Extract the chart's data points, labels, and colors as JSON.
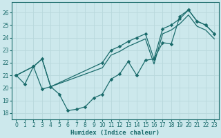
{
  "xlabel": "Humidex (Indice chaleur)",
  "xlim": [
    -0.5,
    23.5
  ],
  "ylim": [
    17.5,
    26.8
  ],
  "xticks": [
    0,
    1,
    2,
    3,
    4,
    5,
    6,
    7,
    8,
    9,
    10,
    11,
    12,
    13,
    14,
    15,
    16,
    17,
    18,
    19,
    20,
    21,
    22,
    23
  ],
  "yticks": [
    18,
    19,
    20,
    21,
    22,
    23,
    24,
    25,
    26
  ],
  "bg_color": "#cce8ec",
  "grid_color": "#b8d8dc",
  "line_color": "#1a6b6b",
  "line1_x": [
    0,
    1,
    2,
    3,
    4,
    5,
    6,
    7,
    8,
    9,
    10,
    11,
    12,
    13,
    14,
    15,
    16,
    17,
    18,
    19,
    20,
    21,
    22,
    23
  ],
  "line1_y": [
    21.0,
    20.3,
    21.7,
    19.9,
    20.1,
    19.5,
    18.2,
    18.3,
    18.5,
    19.2,
    19.5,
    20.7,
    21.1,
    22.1,
    21.0,
    22.2,
    22.3,
    23.6,
    23.5,
    25.7,
    26.2,
    25.3,
    25.0,
    24.3
  ],
  "line2_x": [
    0,
    2,
    3,
    4,
    10,
    11,
    12,
    13,
    14,
    15,
    16,
    17,
    18,
    19,
    20,
    21,
    22,
    23
  ],
  "line2_y": [
    21.0,
    21.7,
    22.3,
    20.1,
    22.0,
    23.0,
    23.3,
    23.7,
    24.0,
    24.3,
    22.3,
    24.7,
    25.0,
    25.5,
    26.2,
    25.3,
    25.0,
    24.3
  ],
  "line3_x": [
    0,
    2,
    3,
    4,
    10,
    11,
    12,
    13,
    14,
    15,
    16,
    17,
    18,
    19,
    20,
    21,
    22,
    23
  ],
  "line3_y": [
    21.0,
    21.7,
    22.3,
    20.1,
    21.6,
    22.6,
    22.9,
    23.3,
    23.6,
    23.9,
    21.9,
    24.3,
    24.6,
    25.1,
    25.8,
    24.9,
    24.6,
    23.9
  ]
}
